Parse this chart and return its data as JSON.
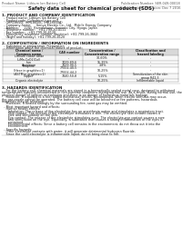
{
  "title": "Safety data sheet for chemical products (SDS)",
  "header_left": "Product Name: Lithium Ion Battery Cell",
  "header_right": "Publication Number: SER-049-00018\nEstablishment / Revision: Dec 7 2016",
  "section1_title": "1. PRODUCT AND COMPANY IDENTIFICATION",
  "section1_lines": [
    "  - Product name: Lithium Ion Battery Cell",
    "  - Product code: Cylindrical-type cell",
    "    (IHR18650J, IHR18650L, IHR18650A)",
    "  - Company name:     Itenya Electric Co., Ltd.  Mobile Energy Company",
    "  - Address:     2201  Kaminakane, Sunonto City, Hyogo, Japan",
    "  - Telephone number:   +81-799-20-4111",
    "  - Fax number:   +81-799-26-4120",
    "  - Emergency telephone number (daytime): +81-799-26-3662",
    "    (Night and holiday): +81-799-26-4120"
  ],
  "section2_title": "2. COMPOSITION / INFORMATION ON INGREDIENTS",
  "section2_line1": "  - Substance or preparation: Preparation",
  "section2_line2": "  - Information about the chemical nature of product:",
  "table_headers": [
    "Chemical name /\nCommon name",
    "CAS number",
    "Concentration /\nConcentration range",
    "Classification and\nhazard labeling"
  ],
  "table_rows": [
    [
      "Lithium cobalt oxide\n(LiMn-CoO2(Co))",
      "-",
      "30-60%",
      "-"
    ],
    [
      "Iron",
      "7439-89-6",
      "15-35%",
      "-"
    ],
    [
      "Aluminum",
      "7429-90-5",
      "3-8%",
      "-"
    ],
    [
      "Graphite\n(Hexe in graphite=1)\n(ASTM in graphite=1)",
      "77002-40-5\n77002-44-2",
      "10-25%",
      "-"
    ],
    [
      "Copper",
      "7440-50-8",
      "5-15%",
      "Sensitization of the skin\ngroup R42,3"
    ],
    [
      "Organic electrolyte",
      "-",
      "10-25%",
      "Inflammable liquid"
    ]
  ],
  "section3_title": "3. HAZARDS IDENTIFICATION",
  "section3_para": [
    "    For the battery cell, chemical materials are stored in a hermetically sealed metal case, designed to withstand",
    "temperatures typically encountered in non-extreme conditions during normal use. As a result, during normal use, there is no",
    "physical danger of ignition or explosion and there is no danger of hazardous materials leakage.",
    "    However, if exposed to a fire, added mechanical shocks, decomposed, when electro stimulus may occur,",
    "the gas nozzle cannot be operated. The battery cell case will be breached or fire patterns, hazardous",
    "materials may be released.",
    "    Moreover, if heated strongly by the surrounding fire, somt gas may be emitted."
  ],
  "section3_effects_title": "  - Most important hazard and effects:",
  "section3_human_title": "    Human health effects:",
  "section3_human_lines": [
    "      Inhalation: The release of the electrolyte has an anesthesia action and stimulates a respiratory tract.",
    "      Skin contact: The release of the electrolyte stimulates a skin. The electrolyte skin contact causes a",
    "      sore and stimulation on the skin.",
    "      Eye contact: The release of the electrolyte stimulates eyes. The electrolyte eye contact causes a sore",
    "      and stimulation on the eye. Especially, a substance that causes a strong inflammation of the eyes is",
    "      contained.",
    "      Environmental effects: Since a battery cell remains in the environment, do not throw out it into the",
    "      environment."
  ],
  "section3_specific_title": "  - Specific hazards:",
  "section3_specific_lines": [
    "    If the electrolyte contacts with water, it will generate detrimental hydrogen fluoride.",
    "    Since the used electrolyte is inflammable liquid, do not bring close to fire."
  ],
  "bg_color": "#ffffff",
  "text_color": "#1a1a1a",
  "header_color": "#555555",
  "line_color": "#aaaaaa",
  "table_border_color": "#999999",
  "table_header_bg": "#d8d8d8"
}
